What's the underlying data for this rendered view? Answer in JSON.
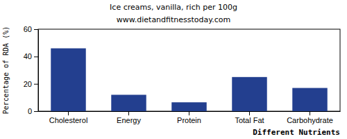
{
  "chart_data": {
    "type": "bar",
    "title": "Ice creams, vanilla, rich per 100g",
    "subtitle": "www.dietandfitnesstoday.com",
    "x_label": "Different Nutrients",
    "y_label": "Percentage of RDA (%)",
    "categories": [
      "Cholesterol",
      "Energy",
      "Protein",
      "Total Fat",
      "Carbohydrate"
    ],
    "values": [
      46,
      12,
      6.5,
      25,
      17
    ],
    "color": "#233f8f",
    "ylim": [
      0,
      60
    ],
    "yticks": [
      0,
      20,
      40,
      60
    ]
  }
}
